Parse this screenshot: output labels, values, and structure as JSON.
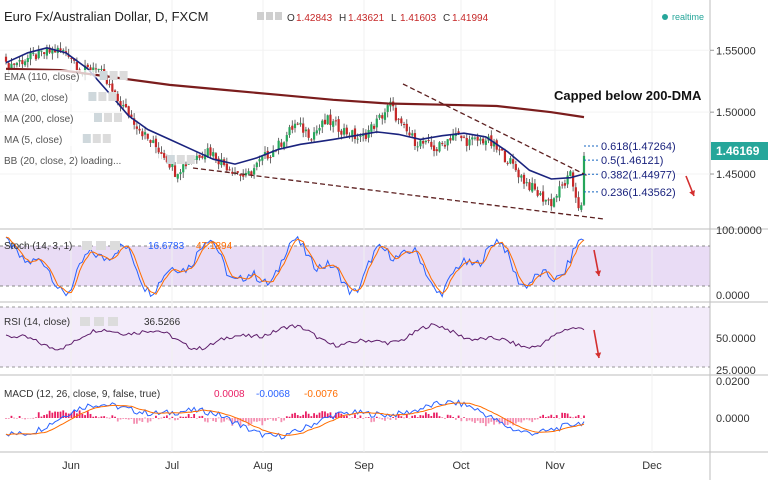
{
  "header": {
    "symbol": "Euro Fx/Australian Dollar, D, FXCM",
    "ohlc": [
      {
        "key": "O",
        "value": "1.42843"
      },
      {
        "key": "H",
        "value": "1.43621"
      },
      {
        "key": "L",
        "value": "1.41603"
      },
      {
        "key": "C",
        "value": "1.41994"
      }
    ],
    "status": "realtime",
    "status_color": "#26a69a"
  },
  "indicators": [
    "EMA (110, close)",
    "MA (20, close)",
    "MA (200, close)",
    "MA (5, close)",
    "BB (20, close, 2) loading..."
  ],
  "annotation": "Capped below 200-DMA",
  "fib_levels": [
    {
      "label": "0.618(1.47264)",
      "value": 1.47264
    },
    {
      "label": "0.5(1.46121)",
      "value": 1.46121
    },
    {
      "label": "0.382(1.44977)",
      "value": 1.44977
    },
    {
      "label": "0.236(1.43562)",
      "value": 1.43562
    }
  ],
  "price_badge": "1.46169",
  "chart_data": [
    {
      "type": "candlestick",
      "panel": "price",
      "y_ticks": [
        "1.55000",
        "1.50000",
        "1.45000"
      ],
      "ylim": [
        1.408,
        1.568
      ],
      "x_ticks": [
        "Jun",
        "Jul",
        "Aug",
        "Sep",
        "Oct",
        "Nov",
        "Dec"
      ],
      "last_price": 1.46169,
      "series": [
        {
          "name": "MA (200, close)",
          "color": "#7b1d1d",
          "values": [
            [
              0,
              1.535
            ],
            [
              20,
              1.534
            ],
            [
              40,
              1.528
            ],
            [
              60,
              1.522
            ],
            [
              80,
              1.518
            ],
            [
              100,
              1.514
            ],
            [
              120,
              1.51
            ],
            [
              140,
              1.507
            ],
            [
              160,
              1.506
            ],
            [
              180,
              1.505
            ],
            [
              200,
              1.5
            ],
            [
              212,
              1.496
            ]
          ]
        },
        {
          "name": "MA (20, close)",
          "color": "#1a237e",
          "values": [
            [
              0,
              1.54
            ],
            [
              8,
              1.548
            ],
            [
              15,
              1.552
            ],
            [
              22,
              1.548
            ],
            [
              30,
              1.535
            ],
            [
              38,
              1.515
            ],
            [
              45,
              1.497
            ],
            [
              52,
              1.486
            ],
            [
              60,
              1.478
            ],
            [
              68,
              1.47
            ],
            [
              76,
              1.462
            ],
            [
              84,
              1.458
            ],
            [
              92,
              1.463
            ],
            [
              100,
              1.47
            ],
            [
              108,
              1.474
            ],
            [
              114,
              1.476
            ],
            [
              120,
              1.478
            ],
            [
              128,
              1.481
            ],
            [
              136,
              1.484
            ],
            [
              144,
              1.482
            ],
            [
              152,
              1.478
            ],
            [
              160,
              1.481
            ],
            [
              168,
              1.483
            ],
            [
              176,
              1.48
            ],
            [
              184,
              1.468
            ],
            [
              192,
              1.453
            ],
            [
              200,
              1.446
            ],
            [
              207,
              1.447
            ],
            [
              212,
              1.45
            ]
          ]
        }
      ]
    },
    {
      "type": "line",
      "panel": "stoch",
      "title": "Stoch (14, 3, 1)",
      "legend_values": [
        {
          "text": "16.6783",
          "color": "#2962ff"
        },
        {
          "text": "47.1894",
          "color": "#ff6d00"
        }
      ],
      "y_ticks": [
        "100.0000",
        "0.0000"
      ],
      "ylim": [
        0,
        100
      ]
    },
    {
      "type": "line",
      "panel": "rsi",
      "title": "RSI (14, close)",
      "legend_values": [
        {
          "text": "36.5266",
          "color": "#333333"
        }
      ],
      "y_ticks": [
        "50.0000",
        "25.0000"
      ],
      "ylim": [
        20,
        80
      ]
    },
    {
      "type": "line",
      "panel": "macd",
      "title": "MACD (12, 26, close, 9, false, true)",
      "legend_values": [
        {
          "text": "0.0008",
          "color": "#e91e63"
        },
        {
          "text": "-0.0068",
          "color": "#2962ff"
        },
        {
          "text": "-0.0076",
          "color": "#ff6d00"
        }
      ],
      "y_ticks": [
        "0.0200",
        "0.0000"
      ],
      "ylim": [
        -0.03,
        0.025
      ]
    }
  ]
}
